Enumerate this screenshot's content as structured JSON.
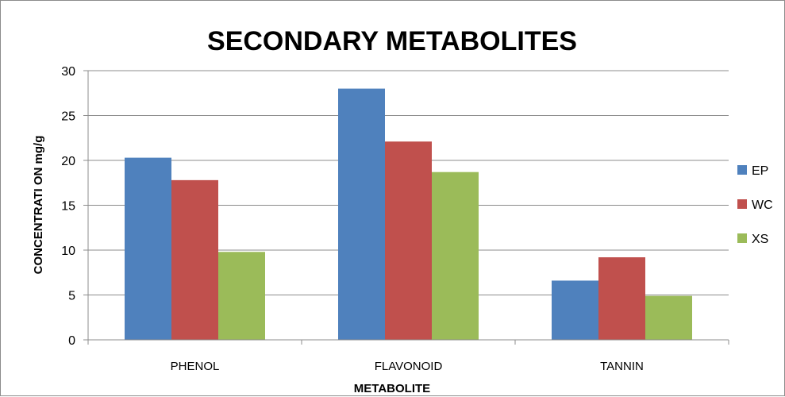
{
  "chart_data": {
    "type": "bar",
    "title": "SECONDARY METABOLITES",
    "xlabel": "METABOLITE",
    "ylabel": "CONCENTRATI ON mg/g",
    "categories": [
      "PHENOL",
      "FLAVONOID",
      "TANNIN"
    ],
    "series": [
      {
        "name": "EP",
        "values": [
          20.3,
          28.0,
          6.6
        ]
      },
      {
        "name": "WC",
        "values": [
          17.8,
          22.1,
          9.2
        ]
      },
      {
        "name": "XS",
        "values": [
          9.8,
          18.7,
          4.9
        ]
      }
    ],
    "ylim": [
      0,
      30
    ],
    "yticks": [
      "0",
      "5",
      "10",
      "15",
      "20",
      "25",
      "30"
    ],
    "grid": true,
    "legend_position": "right",
    "colors": [
      "#4f81bd",
      "#c0504d",
      "#9bbb59"
    ]
  }
}
